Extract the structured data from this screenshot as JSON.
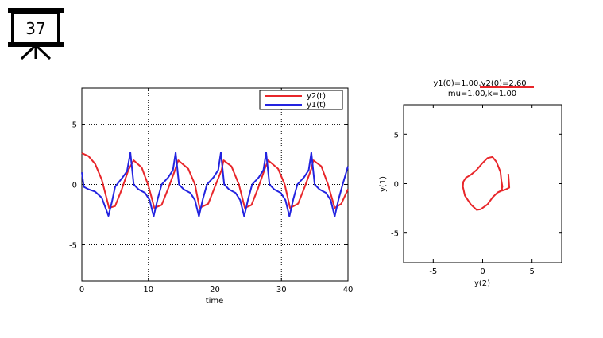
{
  "slide": {
    "number": "37",
    "icon": "presentation-board-icon"
  },
  "chart_data": [
    {
      "type": "line",
      "title": "",
      "xlabel": "time",
      "ylabel": "",
      "xlim": [
        0,
        40
      ],
      "ylim": [
        -8,
        8
      ],
      "xticks": [
        "0",
        "10",
        "20",
        "30",
        "40"
      ],
      "yticks": [
        "-5",
        "0",
        "5"
      ],
      "grid": true,
      "legend_position": "top-right",
      "series": [
        {
          "name": "y2(t)",
          "color": "#e8262a",
          "points": [
            [
              0,
              2.6
            ],
            [
              1,
              2.35
            ],
            [
              2,
              1.7
            ],
            [
              3,
              0.4
            ],
            [
              4.1,
              -1.95
            ],
            [
              5,
              -1.8
            ],
            [
              6,
              -0.4
            ],
            [
              7,
              1.2
            ],
            [
              7.8,
              2.0
            ],
            [
              9,
              1.4
            ],
            [
              10,
              -0.1
            ],
            [
              10.9,
              -1.95
            ],
            [
              12,
              -1.7
            ],
            [
              13,
              -0.3
            ],
            [
              14,
              1.2
            ],
            [
              14.5,
              2.0
            ],
            [
              16,
              1.3
            ],
            [
              17,
              0
            ],
            [
              17.7,
              -1.95
            ],
            [
              19,
              -1.6
            ],
            [
              20,
              -0.2
            ],
            [
              21,
              1.2
            ],
            [
              21.3,
              2.0
            ],
            [
              22.5,
              1.5
            ],
            [
              23.6,
              0
            ],
            [
              24.5,
              -1.95
            ],
            [
              25.5,
              -1.7
            ],
            [
              26.5,
              -0.3
            ],
            [
              27.5,
              1.3
            ],
            [
              28,
              2.0
            ],
            [
              29.5,
              1.3
            ],
            [
              30.5,
              0
            ],
            [
              31.3,
              -1.95
            ],
            [
              32.5,
              -1.6
            ],
            [
              33.5,
              -0.2
            ],
            [
              34.5,
              1.3
            ],
            [
              34.8,
              2.0
            ],
            [
              36,
              1.5
            ],
            [
              37,
              0
            ],
            [
              38,
              -1.95
            ],
            [
              39,
              -1.6
            ],
            [
              40,
              -0.4
            ]
          ]
        },
        {
          "name": "y1(t)",
          "color": "#2323e0",
          "points": [
            [
              0,
              1.0
            ],
            [
              0.3,
              -0.2
            ],
            [
              1,
              -0.4
            ],
            [
              2,
              -0.6
            ],
            [
              3,
              -1.1
            ],
            [
              4,
              -2.6
            ],
            [
              4.5,
              -1.5
            ],
            [
              5,
              -0.2
            ],
            [
              6,
              0.5
            ],
            [
              6.8,
              1.1
            ],
            [
              7.3,
              2.65
            ],
            [
              7.8,
              0
            ],
            [
              8.5,
              -0.4
            ],
            [
              9.5,
              -0.7
            ],
            [
              10.2,
              -1.3
            ],
            [
              10.8,
              -2.65
            ],
            [
              11.4,
              -1.2
            ],
            [
              12,
              0
            ],
            [
              13,
              0.6
            ],
            [
              13.7,
              1.2
            ],
            [
              14.1,
              2.65
            ],
            [
              14.6,
              0
            ],
            [
              15.3,
              -0.4
            ],
            [
              16.3,
              -0.7
            ],
            [
              17,
              -1.3
            ],
            [
              17.6,
              -2.65
            ],
            [
              18.2,
              -1.2
            ],
            [
              18.8,
              0
            ],
            [
              19.8,
              0.6
            ],
            [
              20.5,
              1.2
            ],
            [
              20.9,
              2.65
            ],
            [
              21.4,
              0
            ],
            [
              22.1,
              -0.4
            ],
            [
              23.1,
              -0.7
            ],
            [
              23.8,
              -1.3
            ],
            [
              24.4,
              -2.65
            ],
            [
              25,
              -1.2
            ],
            [
              25.6,
              0
            ],
            [
              26.6,
              0.6
            ],
            [
              27.3,
              1.2
            ],
            [
              27.7,
              2.65
            ],
            [
              28.2,
              0
            ],
            [
              28.9,
              -0.4
            ],
            [
              29.9,
              -0.7
            ],
            [
              30.6,
              -1.3
            ],
            [
              31.2,
              -2.65
            ],
            [
              31.8,
              -1.2
            ],
            [
              32.4,
              0
            ],
            [
              33.4,
              0.6
            ],
            [
              34.1,
              1.2
            ],
            [
              34.5,
              2.65
            ],
            [
              35,
              0
            ],
            [
              35.7,
              -0.4
            ],
            [
              36.7,
              -0.7
            ],
            [
              37.4,
              -1.3
            ],
            [
              38,
              -2.65
            ],
            [
              38.6,
              -1.2
            ],
            [
              39.2,
              0
            ],
            [
              40,
              1.5
            ]
          ]
        }
      ]
    },
    {
      "type": "line",
      "title": "y1(0)=1.00,y2(0)=2.60",
      "subtitle": "mu=1.00,k=1.00",
      "xlabel": "y(2)",
      "ylabel": "y(1)",
      "xlim": [
        -8,
        8
      ],
      "ylim": [
        -8,
        8
      ],
      "xticks": [
        "-5",
        "0",
        "5"
      ],
      "yticks": [
        "-5",
        "0",
        "5"
      ],
      "grid": false,
      "series": [
        {
          "color": "#e8262a",
          "points": [
            [
              2.6,
              1.0
            ],
            [
              2.7,
              -0.4
            ],
            [
              2.3,
              -0.6
            ],
            [
              2.0,
              -0.7
            ],
            [
              1.9,
              -0.3
            ],
            [
              1.9,
              0.3
            ],
            [
              1.8,
              1.2
            ],
            [
              1.4,
              2.2
            ],
            [
              1.0,
              2.7
            ],
            [
              0.5,
              2.6
            ],
            [
              0,
              2.1
            ],
            [
              -0.6,
              1.4
            ],
            [
              -1.2,
              0.9
            ],
            [
              -1.7,
              0.6
            ],
            [
              -1.95,
              0.2
            ],
            [
              -2.0,
              -0.3
            ],
            [
              -1.8,
              -1.2
            ],
            [
              -1.2,
              -2.1
            ],
            [
              -0.6,
              -2.65
            ],
            [
              -0.2,
              -2.6
            ],
            [
              0.5,
              -2.1
            ],
            [
              1.0,
              -1.4
            ],
            [
              1.5,
              -0.9
            ],
            [
              1.9,
              -0.7
            ],
            [
              2.0,
              -0.3
            ],
            [
              1.9,
              0.3
            ],
            [
              1.8,
              1.2
            ],
            [
              1.4,
              2.2
            ],
            [
              1.0,
              2.7
            ],
            [
              0.5,
              2.6
            ],
            [
              0,
              2.1
            ],
            [
              -0.6,
              1.4
            ],
            [
              -1.2,
              0.9
            ],
            [
              -1.7,
              0.6
            ],
            [
              -1.95,
              0.2
            ],
            [
              -2.0,
              -0.3
            ],
            [
              -1.8,
              -1.2
            ],
            [
              -1.2,
              -2.1
            ],
            [
              -0.6,
              -2.65
            ],
            [
              -0.2,
              -2.6
            ],
            [
              0.5,
              -2.1
            ],
            [
              1.0,
              -1.4
            ],
            [
              1.5,
              -0.9
            ],
            [
              1.95,
              -0.7
            ]
          ]
        }
      ]
    }
  ]
}
